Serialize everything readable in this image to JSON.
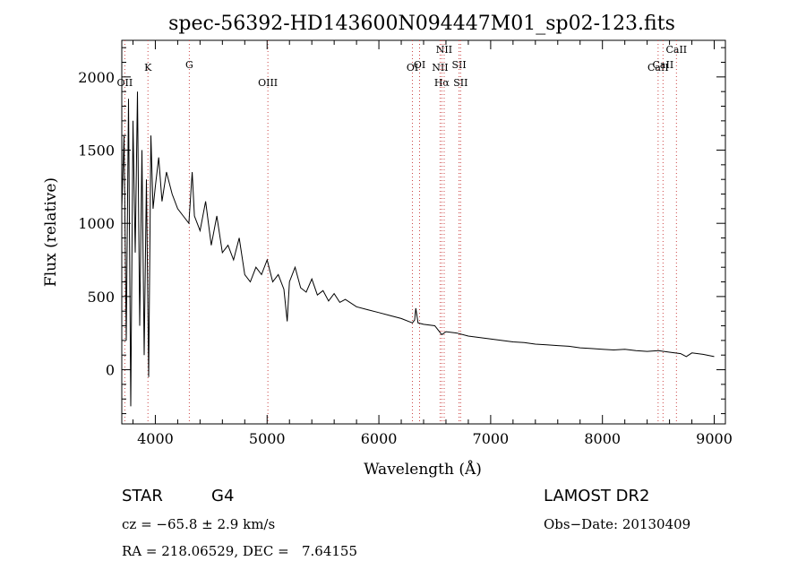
{
  "chart_data": {
    "type": "line",
    "title": "spec-56392-HD143600N094447M01_sp02-123.fits",
    "xlabel": "Wavelength (Å)",
    "ylabel": "Flux (relative)",
    "xlim": [
      3700,
      9100
    ],
    "ylim": [
      -370,
      2250
    ],
    "xticks": [
      4000,
      5000,
      6000,
      7000,
      8000,
      9000
    ],
    "yticks": [
      0,
      500,
      1000,
      1500,
      2000
    ],
    "x_tick_labels": [
      "4000",
      "5000",
      "6000",
      "7000",
      "8000",
      "9000"
    ],
    "y_tick_labels": [
      "0",
      "500",
      "1000",
      "1500",
      "2000"
    ],
    "grid": false,
    "legend": "none",
    "series": [
      {
        "x": [
          3700,
          3720,
          3740,
          3760,
          3780,
          3800,
          3820,
          3840,
          3860,
          3880,
          3900,
          3920,
          3940,
          3960,
          3980,
          4000,
          4030,
          4060,
          4100,
          4150,
          4200,
          4250,
          4300,
          4330,
          4350,
          4400,
          4450,
          4500,
          4550,
          4600,
          4650,
          4700,
          4750,
          4800,
          4850,
          4900,
          4950,
          5000,
          5050,
          5100,
          5150,
          5180,
          5200,
          5250,
          5300,
          5350,
          5400,
          5450,
          5500,
          5550,
          5600,
          5650,
          5700,
          5800,
          5900,
          6000,
          6100,
          6200,
          6300,
          6320,
          6330,
          6350,
          6400,
          6500,
          6563,
          6600,
          6700,
          6800,
          6900,
          7000,
          7100,
          7200,
          7300,
          7400,
          7500,
          7600,
          7700,
          7800,
          7900,
          8000,
          8100,
          8200,
          8300,
          8400,
          8500,
          8600,
          8700,
          8750,
          8800,
          8900,
          9000
        ],
        "y": [
          1100,
          1600,
          200,
          1850,
          -250,
          1700,
          800,
          1900,
          300,
          1500,
          100,
          1300,
          -50,
          1600,
          1100,
          1250,
          1450,
          1150,
          1350,
          1200,
          1100,
          1050,
          1000,
          1350,
          1050,
          950,
          1150,
          850,
          1050,
          800,
          850,
          750,
          900,
          650,
          600,
          700,
          650,
          750,
          600,
          650,
          550,
          330,
          600,
          700,
          560,
          530,
          620,
          510,
          540,
          470,
          520,
          460,
          480,
          430,
          410,
          390,
          370,
          350,
          320,
          340,
          420,
          320,
          310,
          300,
          240,
          260,
          250,
          230,
          220,
          210,
          200,
          190,
          185,
          175,
          170,
          165,
          160,
          150,
          145,
          140,
          135,
          140,
          130,
          125,
          130,
          120,
          110,
          90,
          115,
          105,
          90
        ]
      }
    ],
    "lines": [
      {
        "label": "OII",
        "wavelength": 3727,
        "row": 3
      },
      {
        "label": "K",
        "wavelength": 3934,
        "row": 2
      },
      {
        "label": "G",
        "wavelength": 4304,
        "row": 1
      },
      {
        "label": "OIII",
        "wavelength": 5007,
        "row": 3
      },
      {
        "label": "OI",
        "wavelength": 6300,
        "row": 2
      },
      {
        "label": "OI",
        "wavelength": 6364,
        "row": 1
      },
      {
        "label": "NII",
        "wavelength": 6548,
        "row": 2
      },
      {
        "label": "Hα",
        "wavelength": 6563,
        "row": 3
      },
      {
        "label": "NII",
        "wavelength": 6584,
        "row": 0
      },
      {
        "label": "SII",
        "wavelength": 6717,
        "row": 1
      },
      {
        "label": "SII",
        "wavelength": 6731,
        "row": 3
      },
      {
        "label": "CaII",
        "wavelength": 8498,
        "row": 2
      },
      {
        "label": "CaII",
        "wavelength": 8542,
        "row": 1
      },
      {
        "label": "CaII",
        "wavelength": 8662,
        "row": 0
      }
    ]
  },
  "info": {
    "class_label": "STAR",
    "subclass_label": "G4",
    "survey": "LAMOST DR2",
    "cz": "cz = −65.8 ± 2.9 km/s",
    "obs_date": "Obs−Date: 20130409",
    "coords": "RA = 218.06529, DEC =   7.64155"
  }
}
